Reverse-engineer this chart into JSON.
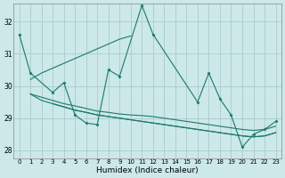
{
  "bg_color": "#cce8e8",
  "grid_color": "#aacccc",
  "line_color": "#1a7a6a",
  "xlim": [
    -0.5,
    23.5
  ],
  "ylim": [
    27.75,
    32.55
  ],
  "yticks": [
    28,
    29,
    30,
    31,
    32
  ],
  "xticks": [
    0,
    1,
    2,
    3,
    4,
    5,
    6,
    7,
    8,
    9,
    10,
    11,
    12,
    13,
    14,
    15,
    16,
    17,
    18,
    19,
    20,
    21,
    22,
    23
  ],
  "xlabel": "Humidex (Indice chaleur)",
  "series_zigzag": [
    31.6,
    30.4,
    null,
    29.8,
    30.1,
    29.1,
    28.85,
    28.8,
    30.5,
    30.3,
    null,
    32.5,
    31.6,
    null,
    null,
    null,
    29.5,
    30.4,
    29.6,
    29.1,
    28.1,
    28.5,
    28.65,
    28.9
  ],
  "series_rising": [
    [
      1,
      30.2
    ],
    [
      2,
      30.4
    ],
    [
      3,
      30.55
    ],
    [
      4,
      30.7
    ],
    [
      5,
      30.85
    ],
    [
      6,
      31.0
    ],
    [
      7,
      31.15
    ],
    [
      8,
      31.3
    ],
    [
      9,
      31.45
    ],
    [
      10,
      31.55
    ]
  ],
  "series_decline1": [
    [
      1,
      29.75
    ],
    [
      2,
      29.65
    ],
    [
      3,
      29.55
    ],
    [
      4,
      29.45
    ],
    [
      5,
      29.38
    ],
    [
      6,
      29.3
    ],
    [
      7,
      29.22
    ],
    [
      8,
      29.18
    ],
    [
      9,
      29.13
    ],
    [
      10,
      29.1
    ],
    [
      11,
      29.08
    ],
    [
      12,
      29.05
    ],
    [
      13,
      29.0
    ],
    [
      14,
      28.95
    ],
    [
      15,
      28.9
    ],
    [
      16,
      28.85
    ],
    [
      17,
      28.8
    ],
    [
      18,
      28.75
    ],
    [
      19,
      28.7
    ],
    [
      20,
      28.65
    ],
    [
      21,
      28.62
    ],
    [
      22,
      28.65
    ],
    [
      23,
      28.75
    ]
  ],
  "series_decline2": [
    [
      1,
      29.75
    ],
    [
      2,
      29.55
    ],
    [
      3,
      29.45
    ],
    [
      4,
      29.35
    ],
    [
      5,
      29.25
    ],
    [
      6,
      29.18
    ],
    [
      7,
      29.1
    ],
    [
      8,
      29.05
    ],
    [
      9,
      29.0
    ],
    [
      10,
      28.95
    ],
    [
      11,
      28.9
    ],
    [
      12,
      28.85
    ],
    [
      13,
      28.8
    ],
    [
      14,
      28.75
    ],
    [
      15,
      28.7
    ],
    [
      16,
      28.65
    ],
    [
      17,
      28.6
    ],
    [
      18,
      28.55
    ],
    [
      19,
      28.5
    ],
    [
      20,
      28.45
    ],
    [
      21,
      28.42
    ],
    [
      22,
      28.45
    ],
    [
      23,
      28.55
    ]
  ],
  "series_decline3": [
    [
      3,
      29.45
    ],
    [
      4,
      29.35
    ],
    [
      5,
      29.25
    ],
    [
      6,
      29.18
    ],
    [
      7,
      29.1
    ],
    [
      8,
      29.05
    ],
    [
      9,
      29.0
    ],
    [
      10,
      28.95
    ],
    [
      11,
      28.9
    ],
    [
      12,
      28.85
    ],
    [
      13,
      28.8
    ],
    [
      14,
      28.75
    ],
    [
      15,
      28.7
    ],
    [
      16,
      28.65
    ],
    [
      17,
      28.6
    ],
    [
      18,
      28.55
    ],
    [
      19,
      28.5
    ],
    [
      20,
      28.45
    ],
    [
      21,
      28.42
    ],
    [
      22,
      28.45
    ],
    [
      23,
      28.55
    ]
  ]
}
